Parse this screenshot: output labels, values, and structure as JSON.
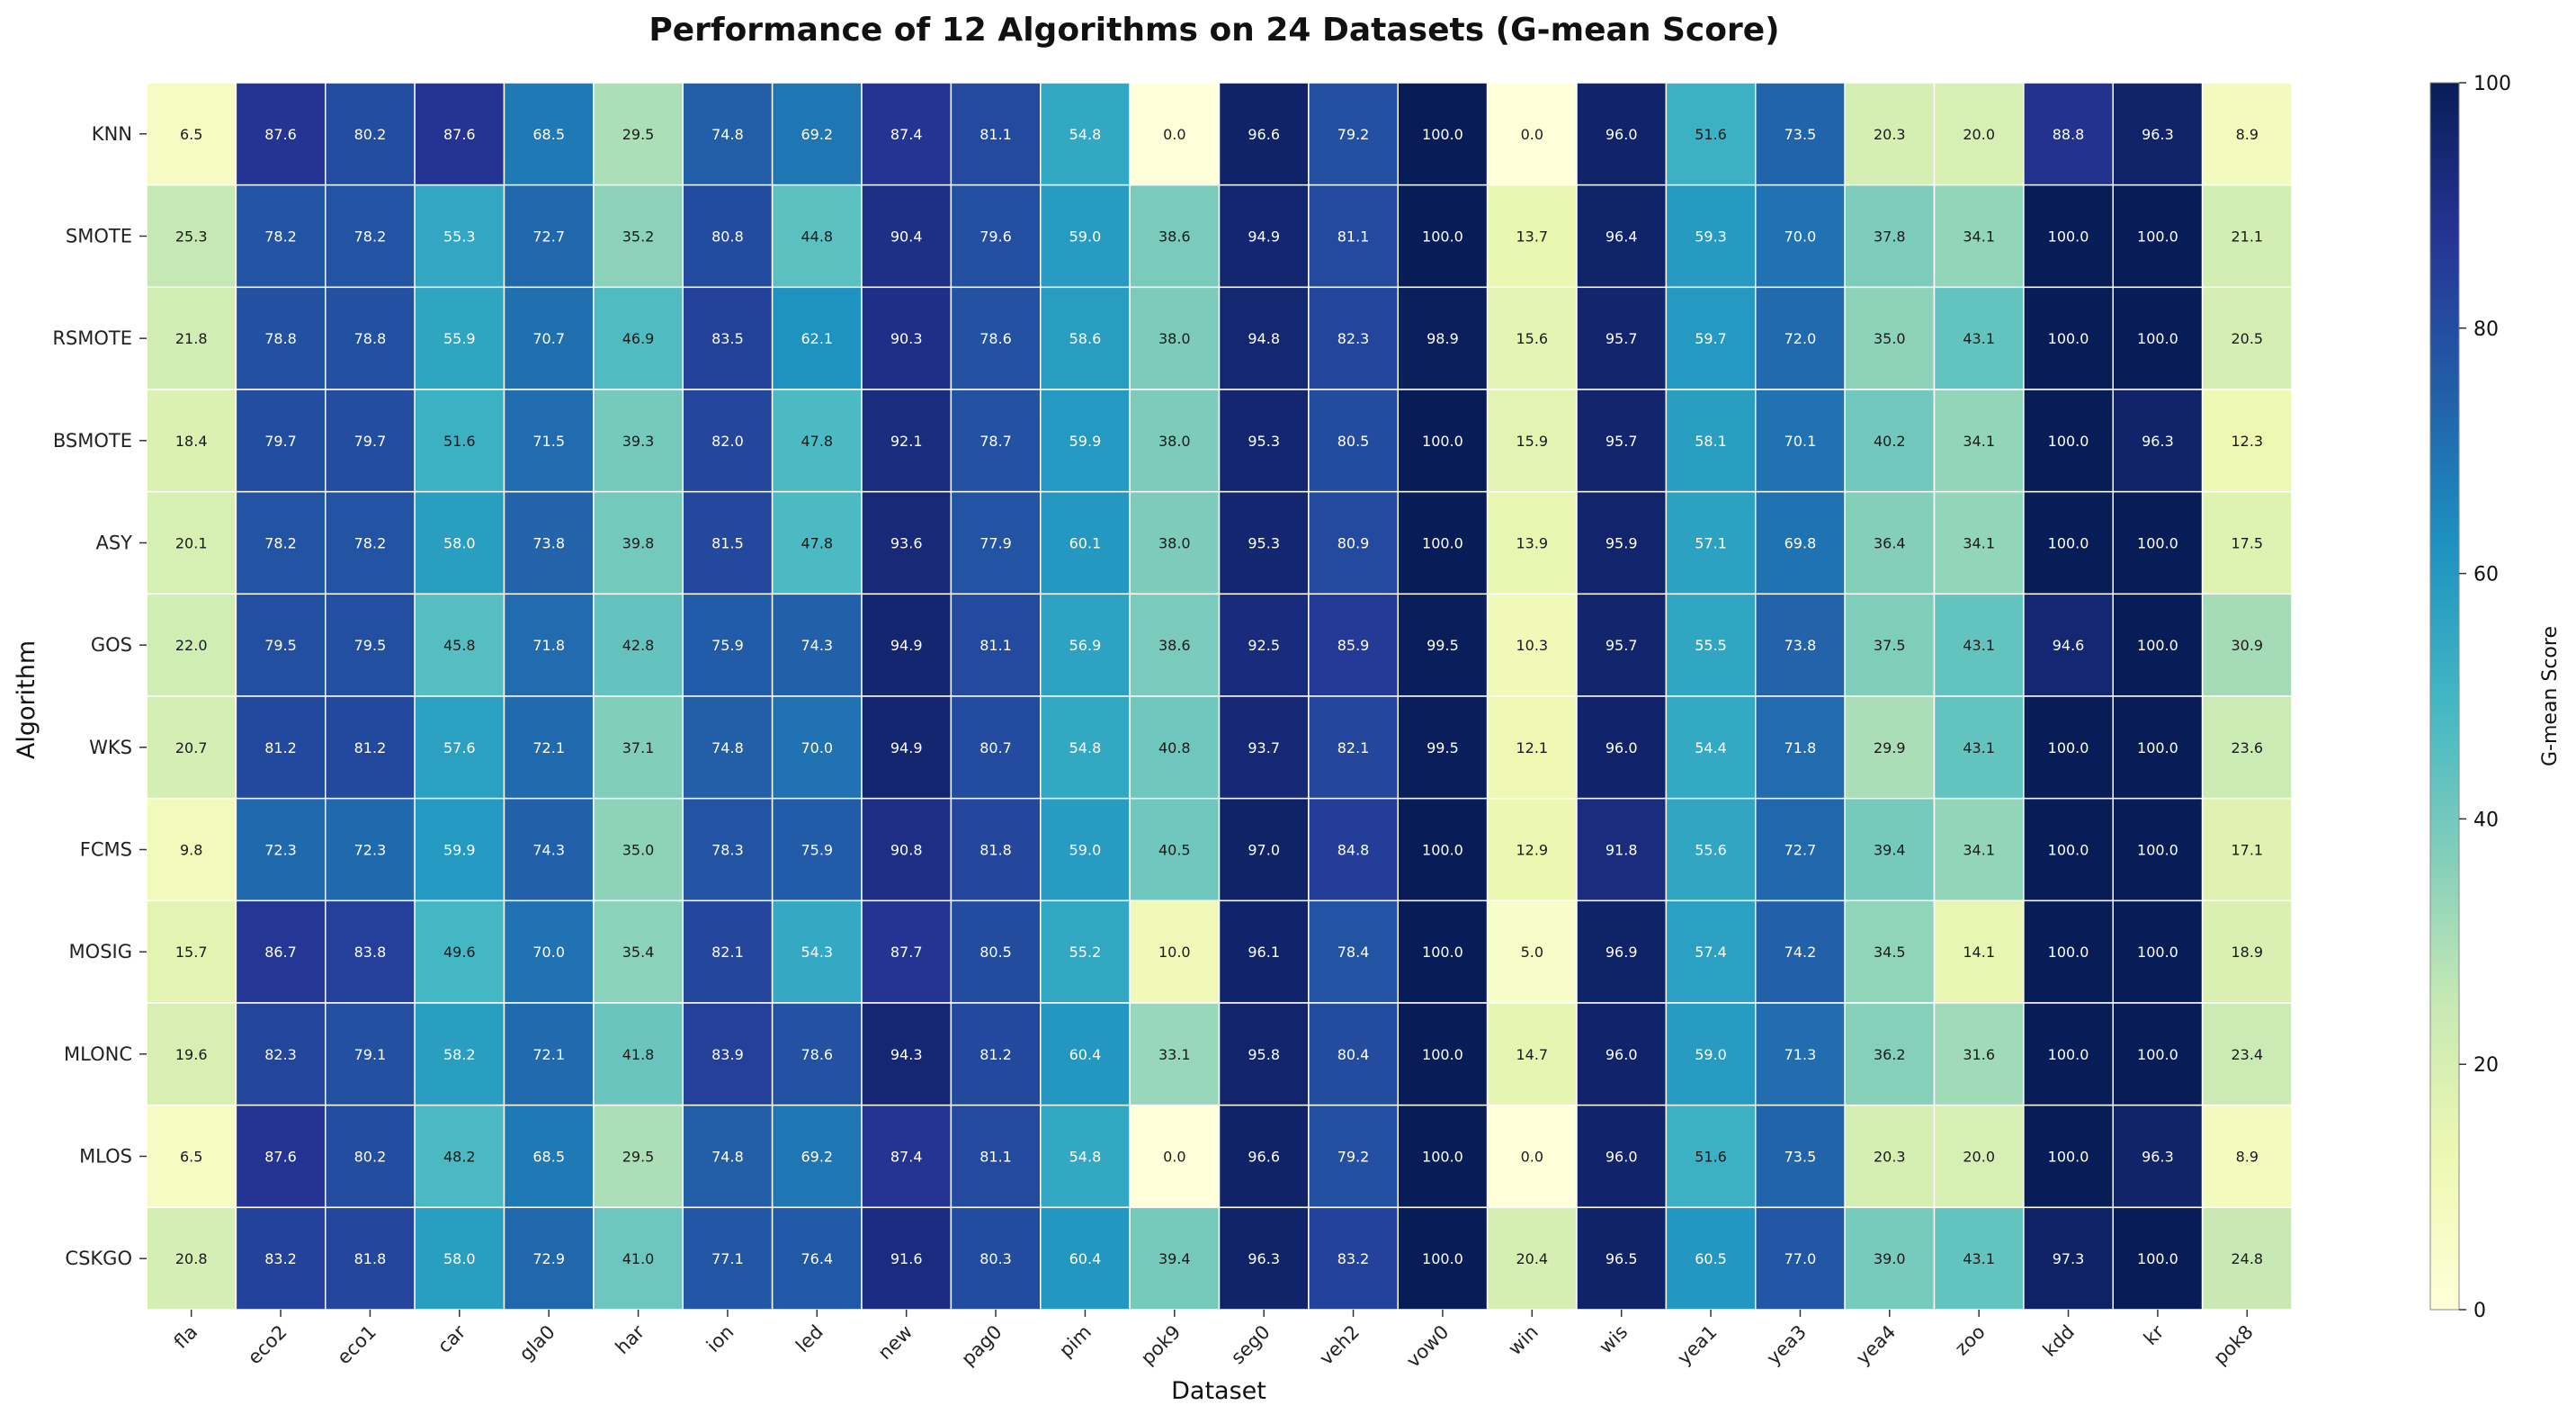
{
  "chart_data": {
    "type": "heatmap",
    "title": "Performance of 12 Algorithms on 24 Datasets (G-mean Score)",
    "xlabel": "Dataset",
    "ylabel": "Algorithm",
    "colorbar_label": "G-mean Score",
    "colorbar_ticks": [
      "0",
      "20",
      "40",
      "60",
      "80",
      "100"
    ],
    "value_range": [
      0,
      100
    ],
    "colormap": "YlGnBu",
    "colormap_stops": [
      "#ffffd9",
      "#edf8b1",
      "#c7e9b4",
      "#7fcdbb",
      "#41b6c4",
      "#1d91c0",
      "#225ea8",
      "#253494",
      "#081d58"
    ],
    "columns": [
      "fla",
      "eco2",
      "eco1",
      "car",
      "gla0",
      "har",
      "ion",
      "led",
      "new",
      "pag0",
      "pim",
      "pok9",
      "seg0",
      "veh2",
      "vow0",
      "win",
      "wis",
      "yea1",
      "yea3",
      "yea4",
      "zoo",
      "kdd",
      "kr",
      "pok8"
    ],
    "rows": [
      "KNN",
      "SMOTE",
      "RSMOTE",
      "BSMOTE",
      "ASY",
      "GOS",
      "WKS",
      "FCMS",
      "MOSIG",
      "MLONC",
      "MLOS",
      "CSKGO"
    ],
    "values": [
      [
        "6.5",
        "87.6",
        "80.2",
        "87.6",
        "68.5",
        "29.5",
        "74.8",
        "69.2",
        "87.4",
        "81.1",
        "54.8",
        "0.0",
        "96.6",
        "79.2",
        "100.0",
        "0.0",
        "96.0",
        "51.6",
        "73.5",
        "20.3",
        "20.0",
        "88.8",
        "96.3",
        "8.9"
      ],
      [
        "25.3",
        "78.2",
        "78.2",
        "55.3",
        "72.7",
        "35.2",
        "80.8",
        "44.8",
        "90.4",
        "79.6",
        "59.0",
        "38.6",
        "94.9",
        "81.1",
        "100.0",
        "13.7",
        "96.4",
        "59.3",
        "70.0",
        "37.8",
        "34.1",
        "100.0",
        "100.0",
        "21.1"
      ],
      [
        "21.8",
        "78.8",
        "78.8",
        "55.9",
        "70.7",
        "46.9",
        "83.5",
        "62.1",
        "90.3",
        "78.6",
        "58.6",
        "38.0",
        "94.8",
        "82.3",
        "98.9",
        "15.6",
        "95.7",
        "59.7",
        "72.0",
        "35.0",
        "43.1",
        "100.0",
        "100.0",
        "20.5"
      ],
      [
        "18.4",
        "79.7",
        "79.7",
        "51.6",
        "71.5",
        "39.3",
        "82.0",
        "47.8",
        "92.1",
        "78.7",
        "59.9",
        "38.0",
        "95.3",
        "80.5",
        "100.0",
        "15.9",
        "95.7",
        "58.1",
        "70.1",
        "40.2",
        "34.1",
        "100.0",
        "96.3",
        "12.3"
      ],
      [
        "20.1",
        "78.2",
        "78.2",
        "58.0",
        "73.8",
        "39.8",
        "81.5",
        "47.8",
        "93.6",
        "77.9",
        "60.1",
        "38.0",
        "95.3",
        "80.9",
        "100.0",
        "13.9",
        "95.9",
        "57.1",
        "69.8",
        "36.4",
        "34.1",
        "100.0",
        "100.0",
        "17.5"
      ],
      [
        "22.0",
        "79.5",
        "79.5",
        "45.8",
        "71.8",
        "42.8",
        "75.9",
        "74.3",
        "94.9",
        "81.1",
        "56.9",
        "38.6",
        "92.5",
        "85.9",
        "99.5",
        "10.3",
        "95.7",
        "55.5",
        "73.8",
        "37.5",
        "43.1",
        "94.6",
        "100.0",
        "30.9"
      ],
      [
        "20.7",
        "81.2",
        "81.2",
        "57.6",
        "72.1",
        "37.1",
        "74.8",
        "70.0",
        "94.9",
        "80.7",
        "54.8",
        "40.8",
        "93.7",
        "82.1",
        "99.5",
        "12.1",
        "96.0",
        "54.4",
        "71.8",
        "29.9",
        "43.1",
        "100.0",
        "100.0",
        "23.6"
      ],
      [
        "9.8",
        "72.3",
        "72.3",
        "59.9",
        "74.3",
        "35.0",
        "78.3",
        "75.9",
        "90.8",
        "81.8",
        "59.0",
        "40.5",
        "97.0",
        "84.8",
        "100.0",
        "12.9",
        "91.8",
        "55.6",
        "72.7",
        "39.4",
        "34.1",
        "100.0",
        "100.0",
        "17.1"
      ],
      [
        "15.7",
        "86.7",
        "83.8",
        "49.6",
        "70.0",
        "35.4",
        "82.1",
        "54.3",
        "87.7",
        "80.5",
        "55.2",
        "10.0",
        "96.1",
        "78.4",
        "100.0",
        "5.0",
        "96.9",
        "57.4",
        "74.2",
        "34.5",
        "14.1",
        "100.0",
        "100.0",
        "18.9"
      ],
      [
        "19.6",
        "82.3",
        "79.1",
        "58.2",
        "72.1",
        "41.8",
        "83.9",
        "78.6",
        "94.3",
        "81.2",
        "60.4",
        "33.1",
        "95.8",
        "80.4",
        "100.0",
        "14.7",
        "96.0",
        "59.0",
        "71.3",
        "36.2",
        "31.6",
        "100.0",
        "100.0",
        "23.4"
      ],
      [
        "6.5",
        "87.6",
        "80.2",
        "48.2",
        "68.5",
        "29.5",
        "74.8",
        "69.2",
        "87.4",
        "81.1",
        "54.8",
        "0.0",
        "96.6",
        "79.2",
        "100.0",
        "0.0",
        "96.0",
        "51.6",
        "73.5",
        "20.3",
        "20.0",
        "100.0",
        "96.3",
        "8.9"
      ],
      [
        "20.8",
        "83.2",
        "81.8",
        "58.0",
        "72.9",
        "41.0",
        "77.1",
        "76.4",
        "91.6",
        "80.3",
        "60.4",
        "39.4",
        "96.3",
        "83.2",
        "100.0",
        "20.4",
        "96.5",
        "60.5",
        "77.0",
        "39.0",
        "43.1",
        "97.3",
        "100.0",
        "24.8"
      ]
    ]
  }
}
